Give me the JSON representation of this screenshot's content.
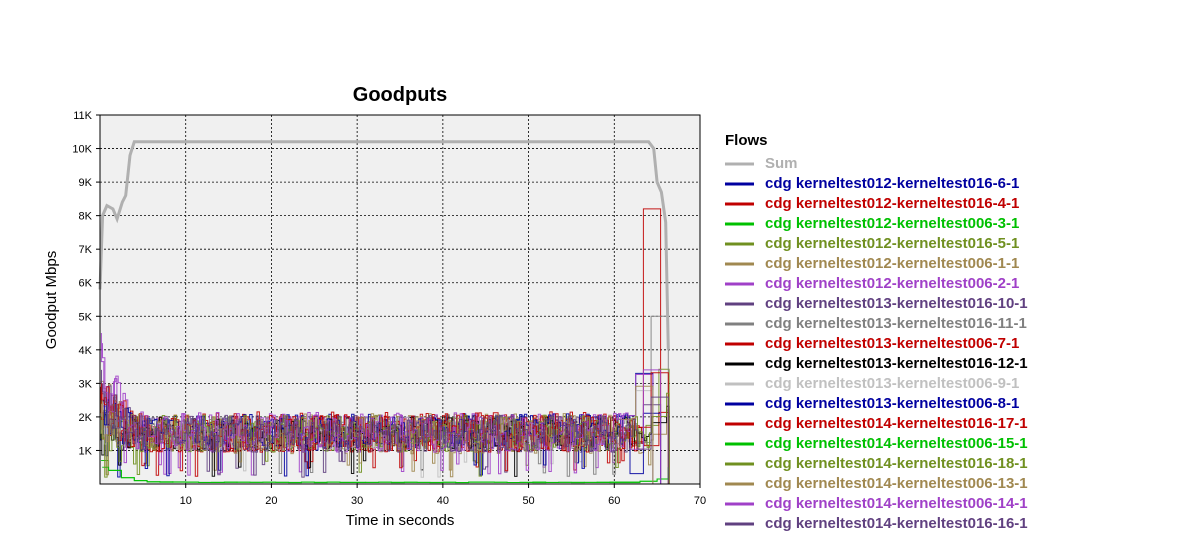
{
  "chart_data": {
    "type": "line",
    "title": "Goodputs",
    "xlabel": "Time in seconds",
    "ylabel": "Goodput Mbps",
    "xlim": [
      0,
      70
    ],
    "ylim": [
      0,
      11000
    ],
    "x_ticks": [
      10,
      20,
      30,
      40,
      50,
      60,
      70
    ],
    "x_tick_labels": [
      "10",
      "20",
      "30",
      "40",
      "50",
      "60",
      "70"
    ],
    "y_ticks": [
      1000,
      2000,
      3000,
      4000,
      5000,
      6000,
      7000,
      8000,
      9000,
      10000,
      11000
    ],
    "y_tick_labels": [
      "1K",
      "2K",
      "3K",
      "4K",
      "5K",
      "6K",
      "7K",
      "8K",
      "9K",
      "10K",
      "11K"
    ],
    "grid": true,
    "legend_title": "Flows",
    "legend_position": "right",
    "series": [
      {
        "name": "Sum",
        "color": "#b0b0b0",
        "x": [
          0,
          0.3,
          0.8,
          1.5,
          2.0,
          2.6,
          3.0,
          3.5,
          4.0,
          64.0,
          64.6,
          65.0,
          65.5,
          66.0,
          66.3
        ],
        "y": [
          5800,
          8000,
          8300,
          8200,
          7900,
          8400,
          8600,
          9800,
          10200,
          10200,
          10000,
          9000,
          8700,
          7800,
          4000
        ]
      },
      {
        "name": "cdg kerneltest012-kerneltest016-6-1",
        "color": "#0000a0",
        "base": 1550,
        "amp": 550,
        "start": 1300,
        "seed": 1
      },
      {
        "name": "cdg kerneltest012-kerneltest016-4-1",
        "color": "#c00000",
        "base": 1550,
        "amp": 600,
        "start": 2900,
        "seed": 2
      },
      {
        "name": "cdg kerneltest012-kerneltest006-3-1",
        "color": "#00c000",
        "low": true,
        "start": 700,
        "seed": 3
      },
      {
        "name": "cdg kerneltest012-kerneltest016-5-1",
        "color": "#709020",
        "base": 1500,
        "amp": 550,
        "start": 2500,
        "seed": 4
      },
      {
        "name": "cdg kerneltest012-kerneltest006-1-1",
        "color": "#a08850",
        "base": 1500,
        "amp": 600,
        "start": 3000,
        "seed": 5
      },
      {
        "name": "cdg kerneltest012-kerneltest006-2-1",
        "color": "#a040c8",
        "base": 1550,
        "amp": 600,
        "start": 4500,
        "seed": 6
      },
      {
        "name": "cdg kerneltest013-kerneltest016-10-1",
        "color": "#604080",
        "base": 1500,
        "amp": 550,
        "start": 3400,
        "seed": 7
      },
      {
        "name": "cdg kerneltest013-kerneltest016-11-1",
        "color": "#808080",
        "base": 1500,
        "amp": 500,
        "start": 2000,
        "seed": 8
      },
      {
        "name": "cdg kerneltest013-kerneltest006-7-1",
        "color": "#c00000",
        "base": 1500,
        "amp": 550,
        "start": 3000,
        "seed": 9
      },
      {
        "name": "cdg kerneltest013-kerneltest016-12-1",
        "color": "#000000",
        "base": 1500,
        "amp": 500,
        "start": 1500,
        "seed": 10
      },
      {
        "name": "cdg kerneltest013-kerneltest006-9-1",
        "color": "#c0c0c0",
        "base": 1500,
        "amp": 500,
        "start": 2000,
        "seed": 11
      },
      {
        "name": "cdg kerneltest013-kerneltest006-8-1",
        "color": "#0000a0",
        "base": 1550,
        "amp": 550,
        "start": 2500,
        "seed": 12
      },
      {
        "name": "cdg kerneltest014-kerneltest016-17-1",
        "color": "#c00000",
        "base": 1550,
        "amp": 600,
        "start": 3000,
        "seed": 13
      },
      {
        "name": "cdg kerneltest014-kerneltest006-15-1",
        "color": "#00c000",
        "low": true,
        "start": 500,
        "seed": 14
      },
      {
        "name": "cdg kerneltest014-kerneltest016-18-1",
        "color": "#709020",
        "base": 1500,
        "amp": 550,
        "start": 2000,
        "seed": 15
      },
      {
        "name": "cdg kerneltest014-kerneltest006-13-1",
        "color": "#a08850",
        "base": 1500,
        "amp": 600,
        "start": 2500,
        "seed": 16
      },
      {
        "name": "cdg kerneltest014-kerneltest006-14-1",
        "color": "#a040c8",
        "base": 1550,
        "amp": 600,
        "start": 4200,
        "seed": 17
      },
      {
        "name": "cdg kerneltest014-kerneltest016-16-1",
        "color": "#604080",
        "base": 1500,
        "amp": 550,
        "start": 3000,
        "seed": 18
      }
    ]
  }
}
